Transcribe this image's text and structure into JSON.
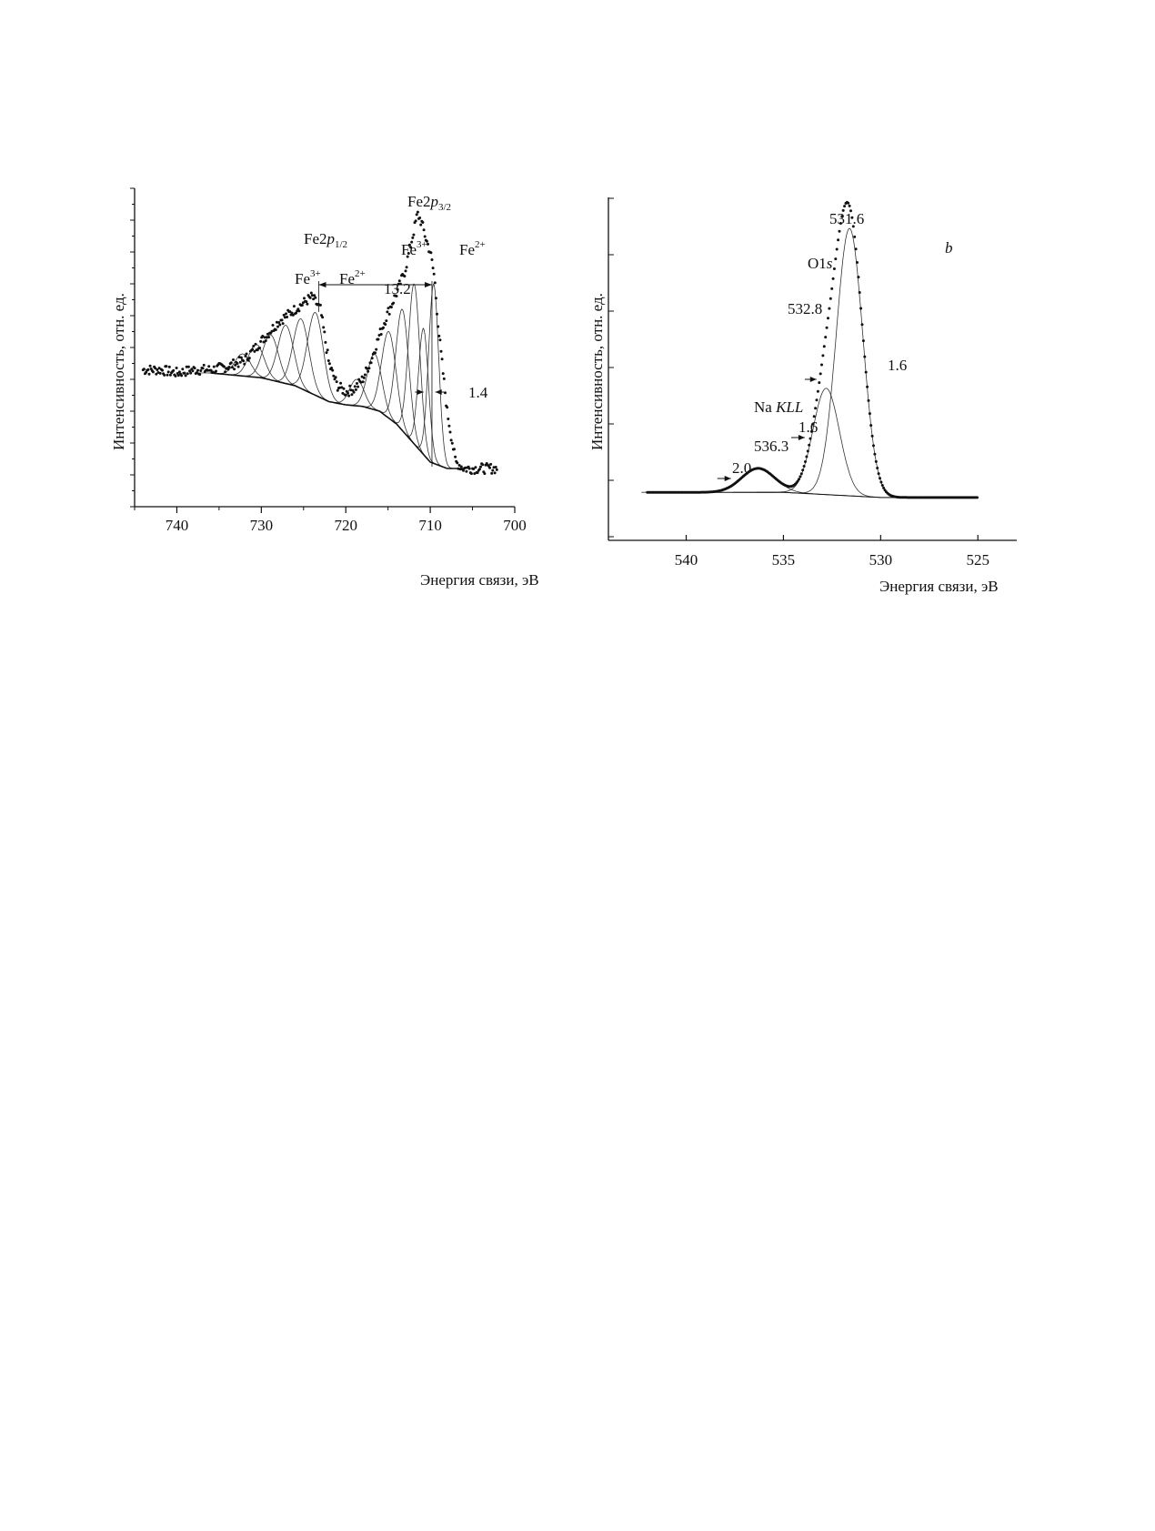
{
  "colors": {
    "ink": "#111111",
    "background": "#ffffff"
  },
  "chart_data": [
    {
      "type": "scatter",
      "title": "",
      "xlabel": "Энергия связи, эВ",
      "ylabel": "Интенсивность, отн. ед.",
      "x_reversed": true,
      "xlim": [
        745,
        700
      ],
      "ylim": [
        0,
        100
      ],
      "y_tick_labels_shown": false,
      "x_ticks": [
        740,
        730,
        720,
        710,
        700
      ],
      "x_tick_labels": [
        "740",
        "730",
        "720",
        "710",
        "700"
      ],
      "labels": {
        "p12_main": "Fe2",
        "p12_ital": "p",
        "p12_sub": "1/2",
        "p32_main": "Fe2",
        "p32_ital": "p",
        "p32_sub": "3/2",
        "fe3_a": "Fe",
        "fe3_a_sup": "3+",
        "fe2_a": "Fe",
        "fe2_a_sup": "2+",
        "fe3_b": "Fe",
        "fe3_b_sup": "3+",
        "fe2_b": "Fe",
        "fe2_b_sup": "2+",
        "split": "13.2",
        "width": "1.4"
      },
      "splitting_ev": 13.2,
      "fwhm_marker_ev": 1.4,
      "series": [
        {
          "kind": "data-points",
          "x": [
            744,
            742,
            740,
            738,
            736,
            734,
            732,
            730,
            728,
            726,
            724,
            723,
            722,
            721,
            720,
            719,
            718,
            717,
            716,
            715,
            714,
            713,
            712,
            711.5,
            711,
            710.5,
            710,
            709.5,
            709,
            708,
            707,
            706,
            705,
            704,
            703,
            702
          ],
          "y": [
            43,
            43,
            42,
            43,
            43,
            44,
            46,
            52,
            58,
            62,
            66,
            62,
            45,
            38,
            36,
            37,
            40,
            46,
            54,
            61,
            67,
            74,
            86,
            92,
            89,
            84,
            80,
            72,
            55,
            30,
            14,
            12,
            12,
            12,
            12,
            12
          ]
        },
        {
          "kind": "background",
          "x": [
            736,
            730,
            726,
            722,
            720,
            718,
            716,
            714,
            712,
            710,
            708,
            706
          ],
          "y": [
            42,
            40.5,
            38,
            33,
            32,
            31.5,
            30,
            26,
            20,
            14,
            12,
            12
          ]
        }
      ],
      "components": [
        {
          "center": 732.2,
          "height": 48,
          "fwhm": 2.2
        },
        {
          "center": 730.6,
          "height": 51,
          "fwhm": 2.2
        },
        {
          "center": 728.9,
          "height": 54,
          "fwhm": 2.2
        },
        {
          "center": 727.1,
          "height": 57,
          "fwhm": 2.2
        },
        {
          "center": 725.3,
          "height": 59,
          "fwhm": 2.2
        },
        {
          "center": 723.6,
          "height": 61,
          "fwhm": 2.2
        },
        {
          "center": 718.7,
          "height": 40,
          "fwhm": 2.0
        },
        {
          "center": 716.6,
          "height": 48,
          "fwhm": 2.0
        },
        {
          "center": 714.9,
          "height": 55,
          "fwhm": 2.0
        },
        {
          "center": 713.3,
          "height": 62,
          "fwhm": 1.8
        },
        {
          "center": 711.9,
          "height": 70,
          "fwhm": 1.6
        },
        {
          "center": 710.8,
          "height": 56,
          "fwhm": 1.4
        },
        {
          "center": 709.6,
          "height": 70,
          "fwhm": 1.4
        }
      ]
    },
    {
      "type": "scatter",
      "title": "",
      "panel_label": "b",
      "xlabel": "Энергия связи, эВ",
      "ylabel": "Интенсивность, отн. ед.",
      "x_reversed": true,
      "xlim": [
        544,
        523
      ],
      "ylim": [
        0,
        100
      ],
      "y_tick_labels_shown": false,
      "x_ticks": [
        540,
        535,
        530,
        525
      ],
      "x_tick_labels": [
        "540",
        "535",
        "530",
        "525"
      ],
      "labels": {
        "o1s_main": "O1",
        "o1s_ital": "s",
        "naKLL_main": "Na ",
        "naKLL_ital": "KLL",
        "peak_main": "531.6",
        "peak_second": "532.8",
        "peak_na": "536.3",
        "width_main": "1.6",
        "width_second": "1.6",
        "width_na": "2.0"
      },
      "peaks": [
        {
          "name": "O1s main",
          "center": 531.6,
          "fwhm": 1.6,
          "height": 78
        },
        {
          "name": "O1s second",
          "center": 532.8,
          "fwhm": 1.6,
          "height": 31
        },
        {
          "name": "Na KLL",
          "center": 536.3,
          "fwhm": 2.0,
          "height": 7
        }
      ],
      "background": {
        "x": [
          542,
          535,
          530,
          525
        ],
        "y": [
          14,
          14,
          12.5,
          12.5
        ]
      }
    }
  ]
}
